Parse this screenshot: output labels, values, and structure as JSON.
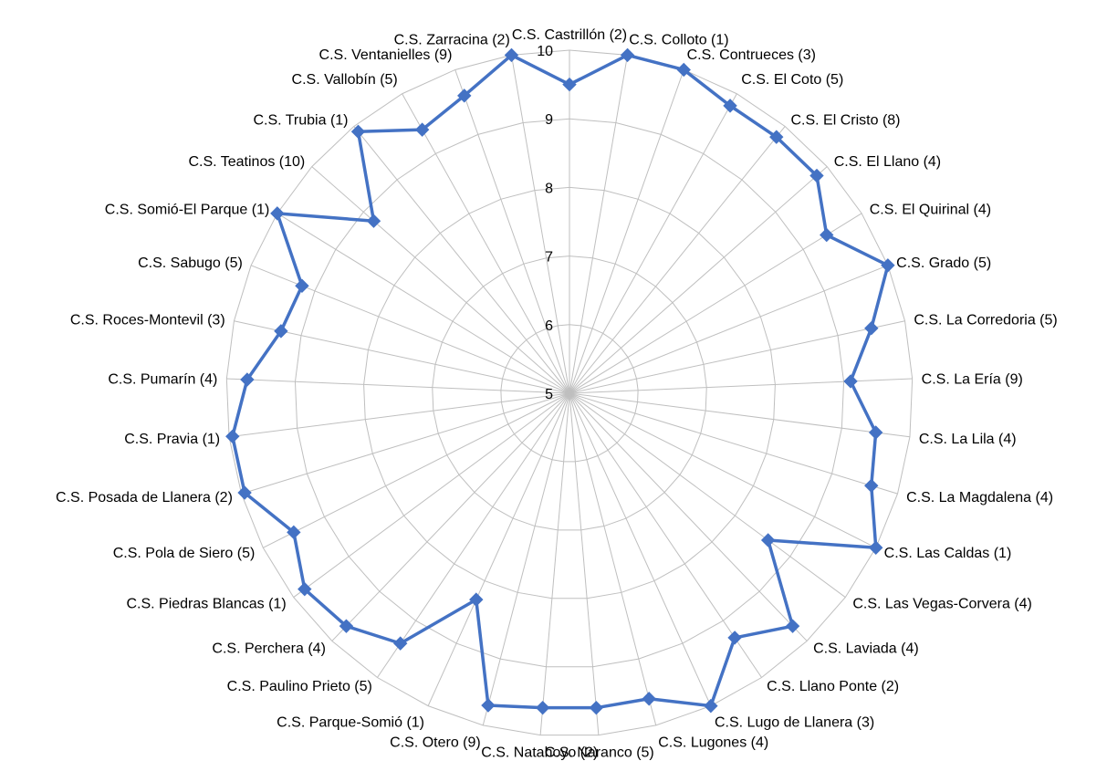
{
  "colors": {
    "series": "#4472c4",
    "grid": "#bfbfbf",
    "text": "#000000",
    "background": "#ffffff"
  },
  "chart_data": {
    "type": "radar",
    "title": "",
    "legend": "none",
    "grid": true,
    "rlim": [
      5,
      10
    ],
    "ticks": [
      "5",
      "6",
      "7",
      "8",
      "9",
      "10"
    ],
    "categories": [
      "C.S. Castrillón (2)",
      "C.S. Colloto (1)",
      "C.S. Contrueces (3)",
      "C.S. El Coto (5)",
      "C.S. El Cristo (8)",
      "C.S. El Llano (4)",
      "C.S. El Quirinal (4)",
      "C.S. Grado (5)",
      "C.S. La Corredoria (5)",
      "C.S. La Ería (9)",
      "C.S. La Lila (4)",
      "C.S. La Magdalena (4)",
      "C.S. Las Caldas (1)",
      "C.S. Las Vegas-Corvera (4)",
      "C.S. Laviada (4)",
      "C.S. Llano Ponte (2)",
      "C.S. Lugo de Llanera (3)",
      "C.S. Lugones (4)",
      "C.S. Naranco (5)",
      "C.S. Natahoyo (2)",
      "C.S. Otero (9)",
      "C.S. Parque-Somió (1)",
      "C.S. Paulino Prieto (5)",
      "C.S. Perchera (4)",
      "C.S. Piedras Blancas (1)",
      "C.S. Pola de Siero (5)",
      "C.S. Posada de Llanera (2)",
      "C.S. Pravia (1)",
      "C.S. Pumarín (4)",
      "C.S. Roces-Montevil (3)",
      "C.S. Sabugo (5)",
      "C.S. Somió-El Parque (1)",
      "C.S. Teatinos (10)",
      "C.S. Trubia (1)",
      "C.S. Vallobín (5)",
      "C.S. Ventanielles (9)",
      "C.S. Zarracina (2)"
    ],
    "series": [
      {
        "values": [
          9.5,
          10,
          10,
          9.8,
          9.8,
          9.8,
          9.4,
          10,
          9.5,
          9.1,
          9.5,
          9.6,
          10,
          8.6,
          9.7,
          9.3,
          10,
          9.6,
          9.6,
          9.6,
          9.7,
          8.3,
          9.4,
          9.7,
          9.8,
          9.5,
          9.95,
          9.95,
          9.7,
          9.3,
          9.2,
          10,
          8.8,
          9.9,
          9.4,
          9.6,
          10
        ]
      }
    ]
  }
}
